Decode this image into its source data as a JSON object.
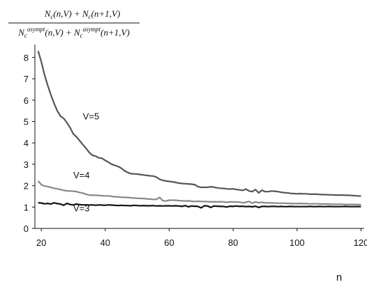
{
  "chart_data": {
    "type": "line",
    "ylabel": {
      "numerator": [
        "N",
        "c",
        "(n,V) + ",
        "N",
        "c",
        "(n+1,V)"
      ],
      "denominator": [
        "N",
        "c",
        "asympt",
        "(n,V) + ",
        "N",
        "c",
        "asympt",
        "(n+1,V)"
      ]
    },
    "xlabel": "n",
    "xlim": [
      18,
      121
    ],
    "ylim": [
      0,
      8.6
    ],
    "xticks": [
      20,
      40,
      60,
      80,
      100,
      120
    ],
    "yticks": [
      0,
      1,
      2,
      3,
      4,
      5,
      6,
      7,
      8
    ],
    "grid": false,
    "series": [
      {
        "name": "V=5",
        "color": "#555555",
        "x": [
          19,
          20,
          21,
          22,
          23,
          24,
          25,
          26,
          27,
          28,
          29,
          30,
          31,
          32,
          33,
          34,
          35,
          36,
          37,
          38,
          39,
          40,
          41,
          42,
          43,
          44,
          45,
          46,
          47,
          48,
          49,
          50,
          51,
          52,
          53,
          54,
          55,
          56,
          57,
          58,
          59,
          60,
          61,
          62,
          63,
          64,
          65,
          66,
          67,
          68,
          69,
          70,
          71,
          72,
          73,
          74,
          75,
          76,
          77,
          78,
          79,
          80,
          81,
          82,
          83,
          84,
          85,
          86,
          87,
          88,
          89,
          90,
          91,
          92,
          93,
          94,
          95,
          96,
          97,
          98,
          99,
          100,
          101,
          102,
          103,
          104,
          105,
          106,
          107,
          108,
          109,
          110,
          111,
          112,
          113,
          114,
          115,
          116,
          117,
          118,
          119,
          120
        ],
        "y": [
          8.3,
          7.8,
          7.2,
          6.7,
          6.25,
          5.85,
          5.5,
          5.25,
          5.15,
          4.95,
          4.72,
          4.42,
          4.28,
          4.1,
          3.92,
          3.75,
          3.55,
          3.42,
          3.38,
          3.3,
          3.28,
          3.18,
          3.1,
          3.0,
          2.95,
          2.9,
          2.82,
          2.7,
          2.62,
          2.56,
          2.55,
          2.54,
          2.52,
          2.5,
          2.48,
          2.46,
          2.45,
          2.4,
          2.3,
          2.25,
          2.22,
          2.2,
          2.18,
          2.15,
          2.12,
          2.1,
          2.09,
          2.08,
          2.07,
          2.05,
          1.95,
          1.92,
          1.93,
          1.92,
          1.95,
          1.93,
          1.9,
          1.88,
          1.87,
          1.85,
          1.84,
          1.85,
          1.82,
          1.8,
          1.78,
          1.84,
          1.75,
          1.72,
          1.82,
          1.66,
          1.79,
          1.72,
          1.72,
          1.75,
          1.74,
          1.72,
          1.69,
          1.67,
          1.66,
          1.64,
          1.63,
          1.62,
          1.63,
          1.62,
          1.62,
          1.6,
          1.6,
          1.6,
          1.59,
          1.58,
          1.58,
          1.57,
          1.57,
          1.56,
          1.56,
          1.56,
          1.55,
          1.55,
          1.54,
          1.53,
          1.52,
          1.51
        ]
      },
      {
        "name": "V=4",
        "color": "#888888",
        "x": [
          19,
          20,
          21,
          22,
          23,
          24,
          25,
          26,
          27,
          28,
          29,
          30,
          31,
          32,
          33,
          34,
          35,
          36,
          37,
          38,
          39,
          40,
          41,
          42,
          43,
          44,
          45,
          46,
          47,
          48,
          49,
          50,
          51,
          52,
          53,
          54,
          55,
          56,
          57,
          58,
          59,
          60,
          61,
          62,
          63,
          64,
          65,
          66,
          67,
          68,
          69,
          70,
          71,
          72,
          73,
          74,
          75,
          76,
          77,
          78,
          79,
          80,
          81,
          82,
          83,
          84,
          85,
          86,
          87,
          88,
          89,
          90,
          91,
          92,
          93,
          94,
          95,
          96,
          97,
          98,
          99,
          100,
          101,
          102,
          103,
          104,
          105,
          106,
          107,
          108,
          109,
          110,
          111,
          112,
          113,
          114,
          115,
          116,
          117,
          118,
          119,
          120
        ],
        "y": [
          2.22,
          2.05,
          1.98,
          1.96,
          1.92,
          1.88,
          1.85,
          1.82,
          1.78,
          1.76,
          1.75,
          1.74,
          1.72,
          1.68,
          1.65,
          1.6,
          1.56,
          1.55,
          1.55,
          1.54,
          1.53,
          1.52,
          1.52,
          1.5,
          1.48,
          1.48,
          1.46,
          1.45,
          1.45,
          1.43,
          1.42,
          1.41,
          1.4,
          1.4,
          1.38,
          1.37,
          1.36,
          1.36,
          1.45,
          1.3,
          1.28,
          1.32,
          1.32,
          1.32,
          1.3,
          1.29,
          1.28,
          1.29,
          1.27,
          1.26,
          1.27,
          1.26,
          1.26,
          1.25,
          1.24,
          1.25,
          1.24,
          1.25,
          1.24,
          1.22,
          1.24,
          1.24,
          1.23,
          1.23,
          1.2,
          1.22,
          1.26,
          1.18,
          1.24,
          1.2,
          1.22,
          1.2,
          1.2,
          1.19,
          1.19,
          1.18,
          1.18,
          1.18,
          1.17,
          1.17,
          1.16,
          1.16,
          1.17,
          1.16,
          1.16,
          1.15,
          1.15,
          1.15,
          1.15,
          1.14,
          1.14,
          1.14,
          1.13,
          1.13,
          1.13,
          1.13,
          1.12,
          1.12,
          1.12,
          1.12,
          1.11,
          1.11
        ]
      },
      {
        "name": "V=3",
        "color": "#111111",
        "x": [
          19,
          20,
          21,
          22,
          23,
          24,
          25,
          26,
          27,
          28,
          29,
          30,
          31,
          32,
          33,
          34,
          35,
          36,
          37,
          38,
          39,
          40,
          41,
          42,
          43,
          44,
          45,
          46,
          47,
          48,
          49,
          50,
          51,
          52,
          53,
          54,
          55,
          56,
          57,
          58,
          59,
          60,
          61,
          62,
          63,
          64,
          65,
          66,
          67,
          68,
          69,
          70,
          71,
          72,
          73,
          74,
          75,
          76,
          77,
          78,
          79,
          80,
          81,
          82,
          83,
          84,
          85,
          86,
          87,
          88,
          89,
          90,
          91,
          92,
          93,
          94,
          95,
          96,
          97,
          98,
          99,
          100,
          101,
          102,
          103,
          104,
          105,
          106,
          107,
          108,
          109,
          110,
          111,
          112,
          113,
          114,
          115,
          116,
          117,
          118,
          119,
          120
        ],
        "y": [
          1.2,
          1.19,
          1.15,
          1.17,
          1.14,
          1.2,
          1.16,
          1.14,
          1.08,
          1.17,
          1.12,
          1.1,
          1.14,
          1.11,
          1.1,
          1.1,
          1.09,
          1.1,
          1.08,
          1.1,
          1.09,
          1.08,
          1.1,
          1.09,
          1.08,
          1.07,
          1.08,
          1.07,
          1.07,
          1.06,
          1.08,
          1.07,
          1.06,
          1.07,
          1.06,
          1.06,
          1.07,
          1.05,
          1.06,
          1.05,
          1.06,
          1.06,
          1.05,
          1.06,
          1.05,
          1.03,
          1.07,
          1.01,
          1.05,
          1.04,
          1.03,
          0.96,
          1.06,
          1.05,
          0.98,
          1.05,
          1.04,
          1.03,
          1.03,
          1.0,
          1.04,
          1.03,
          1.05,
          1.03,
          1.04,
          1.02,
          1.03,
          1.01,
          1.04,
          0.98,
          1.03,
          1.03,
          1.02,
          1.03,
          1.03,
          1.02,
          1.03,
          1.02,
          1.02,
          1.03,
          1.02,
          1.02,
          1.02,
          1.02,
          1.02,
          1.03,
          1.02,
          1.02,
          1.03,
          1.02,
          1.02,
          1.03,
          1.02,
          1.02,
          1.02,
          1.02,
          1.03,
          1.02,
          1.02,
          1.02,
          1.02,
          1.02
        ]
      }
    ],
    "annotations": [
      {
        "text": "V=5",
        "x": 33,
        "y": 5.1
      },
      {
        "text": "V=4",
        "x": 30,
        "y": 2.35
      },
      {
        "text": "V=3",
        "x": 30,
        "y": 0.8
      }
    ]
  }
}
